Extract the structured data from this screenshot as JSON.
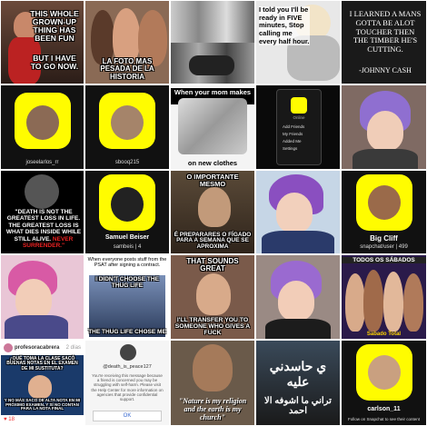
{
  "tiles": {
    "t1": {
      "top": "THIS WHOLE GROWN-UP THING HAS BEEN FUN",
      "bottom": "BUT I HAVE TO GO NOW."
    },
    "t2": {
      "bottom": "LA FOTO MAS PESADA DE LA HISTORIA"
    },
    "t4": {
      "text": "I told you I'll be ready in FIVE minutes, Stop calling me every half hour."
    },
    "t5": {
      "text": "I LEARNED A MANS GOTTA BE ALOT TOUCHER THEN THE TIMBER HE'S CUTTING.",
      "author": "-JOHNNY CASH"
    },
    "t6": {
      "user": "joseelarlos_rr"
    },
    "t7": {
      "user": "sbooq215"
    },
    "t8": {
      "top": "When your mom makes you try",
      "bottom": "on new clothes"
    },
    "t9": {
      "title": "Online",
      "items": [
        "Add Friends",
        "My Friends",
        "Added Me",
        "Settings"
      ]
    },
    "t11": {
      "text": "\"DEATH IS NOT THE GREATEST LOSS IN LIFE. THE GREATEST LOSS IS WHAT DIES INSIDE WHILE STILL ALIVE.",
      "emph": "NEVER SURRENDER.\""
    },
    "t12": {
      "name": "Samuel Beiser",
      "user": "sambeis | 4"
    },
    "t13": {
      "top": "O IMPORTANTE MESMO",
      "bottom": "É PREPARARES O FÍGADO PARA A SEMANA QUE SE APROXIMA"
    },
    "t15": {
      "name": "Big Cliff",
      "user": "snapchat/user | 499"
    },
    "t17": {
      "header": "When everyone posts stuff from the PSAT after signing a contract.",
      "top": "I DIDN'T CHOOSE THE THUG LIFE",
      "bottom": "THE THUG LIFE CHOSE ME"
    },
    "t18": {
      "top": "THAT SOUNDS GREAT",
      "bottom": "I'LL TRANSFER YOU TO SOMEONE WHO GIVES A FUCK"
    },
    "t20": {
      "top": "TODOS OS SÁBADOS",
      "bottom": "Sabado Total"
    },
    "t21": {
      "user": "profesoracabrera",
      "time": "2 días",
      "top": "¿QUÉ TOMA LA CLASE SACÓ BUENAS NOTAS EN EL EXAMEN DE MI SUSTITUTA?",
      "bottom": "Y NO MÁS SACO DE ALTA NOTA EN MI PRÓXIMO EXAMEN, Y SÍ NO CONTAN PARA LA NOTA FINAL",
      "likes": "♥ 18"
    },
    "t22": {
      "user": "@death_is_peace127",
      "body": "You're receiving this message because a friend is concerned you may be struggling with self-harm. Please visit the Help Center for more information on agencies that provide confidential support.",
      "button": "OK"
    },
    "t23": {
      "quote": "\"Nature is my religion and the earth is my church\""
    },
    "t24": {
      "text": "ي حاسدني عليه",
      "bottom": "تراني ما اشوفه الا احمد"
    },
    "t25": {
      "user": "carlson_11",
      "sub": "Follow on Snapchat to see their content"
    }
  },
  "colors": {
    "snapYellow": "#fffc00",
    "black": "#111111"
  }
}
